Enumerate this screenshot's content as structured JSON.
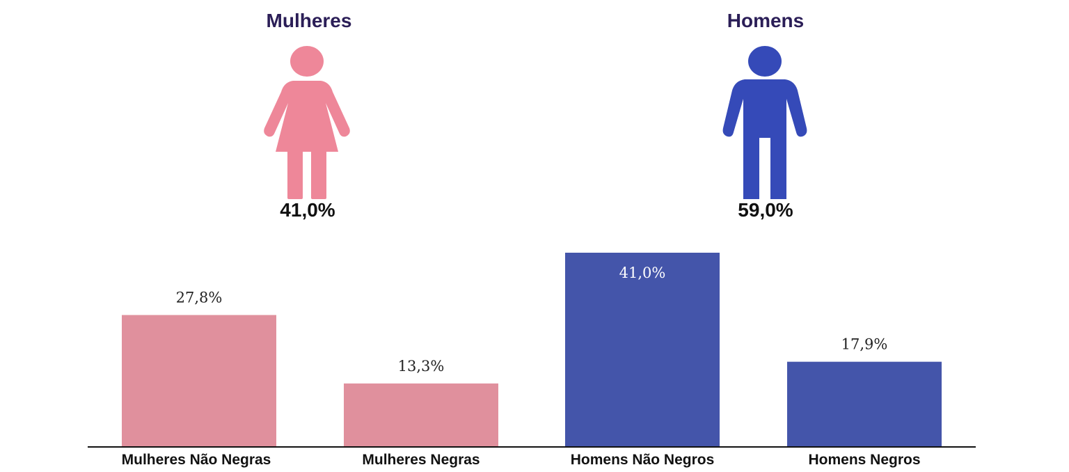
{
  "groups": [
    {
      "title": "Mulheres",
      "percent": "41,0%",
      "icon": "woman-icon",
      "color": "#ee8799"
    },
    {
      "title": "Homens",
      "percent": "59,0%",
      "icon": "man-icon",
      "color": "#354ab8"
    }
  ],
  "chart_data": {
    "type": "bar",
    "categories": [
      "Mulheres Não Negras",
      "Mulheres Negras",
      "Homens Não Negros",
      "Homens Negros"
    ],
    "values": [
      27.8,
      13.3,
      41.0,
      17.9
    ],
    "value_labels": [
      "27,8%",
      "13,3%",
      "41,0%",
      "17,9%"
    ],
    "colors": [
      "#e0909d",
      "#e0909d",
      "#4455aa",
      "#4455aa"
    ],
    "label_inside": [
      false,
      false,
      true,
      false
    ],
    "ylim": [
      0,
      41.0
    ],
    "grid": false,
    "legend": "none"
  }
}
